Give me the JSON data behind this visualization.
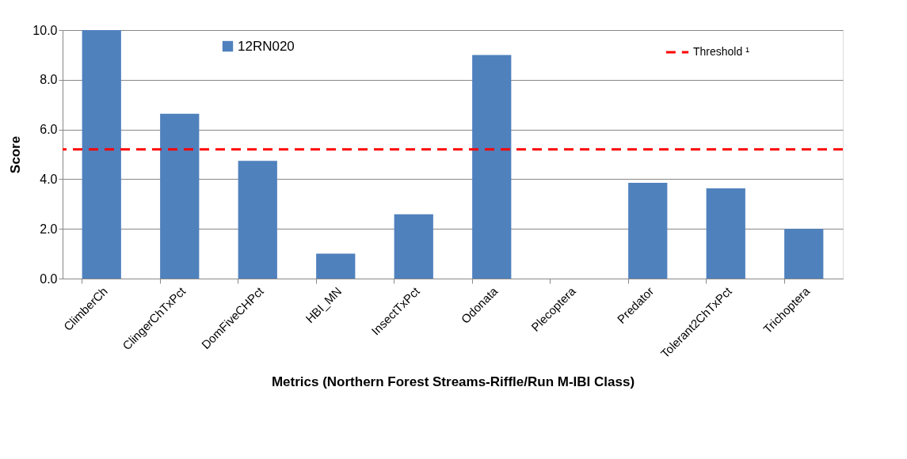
{
  "chart_data": {
    "type": "bar",
    "xlabel": "Metrics (Northern Forest Streams-Riffle/Run M-IBI Class)",
    "ylabel": "Score",
    "categories": [
      "ClimberCh",
      "ClingerChTxPct",
      "DomFiveCHPct",
      "HBI_MN",
      "InsectTxPct",
      "Odonata",
      "Plecoptera",
      "Predator",
      "Tolerant2ChTxPct",
      "Trichoptera"
    ],
    "series": [
      {
        "name": "12RN020",
        "color": "#4f81bd",
        "values": [
          10.0,
          6.63,
          4.74,
          1.0,
          2.59,
          9.0,
          0,
          3.85,
          3.63,
          2.0
        ]
      }
    ],
    "ylim": [
      0,
      10
    ],
    "yticks": [
      {
        "value": 0,
        "label": "0.0"
      },
      {
        "value": 2,
        "label": "2.0"
      },
      {
        "value": 4,
        "label": "4.0"
      },
      {
        "value": 6,
        "label": "6.0"
      },
      {
        "value": 8,
        "label": "8.0"
      },
      {
        "value": 10,
        "label": "10.0"
      }
    ],
    "ref_lines": [
      {
        "axis": "y",
        "value": 5.2,
        "label": "Threshold ¹",
        "color": "#ff0000",
        "line_style": "dashed"
      }
    ],
    "grid": "y",
    "legend": "top"
  }
}
